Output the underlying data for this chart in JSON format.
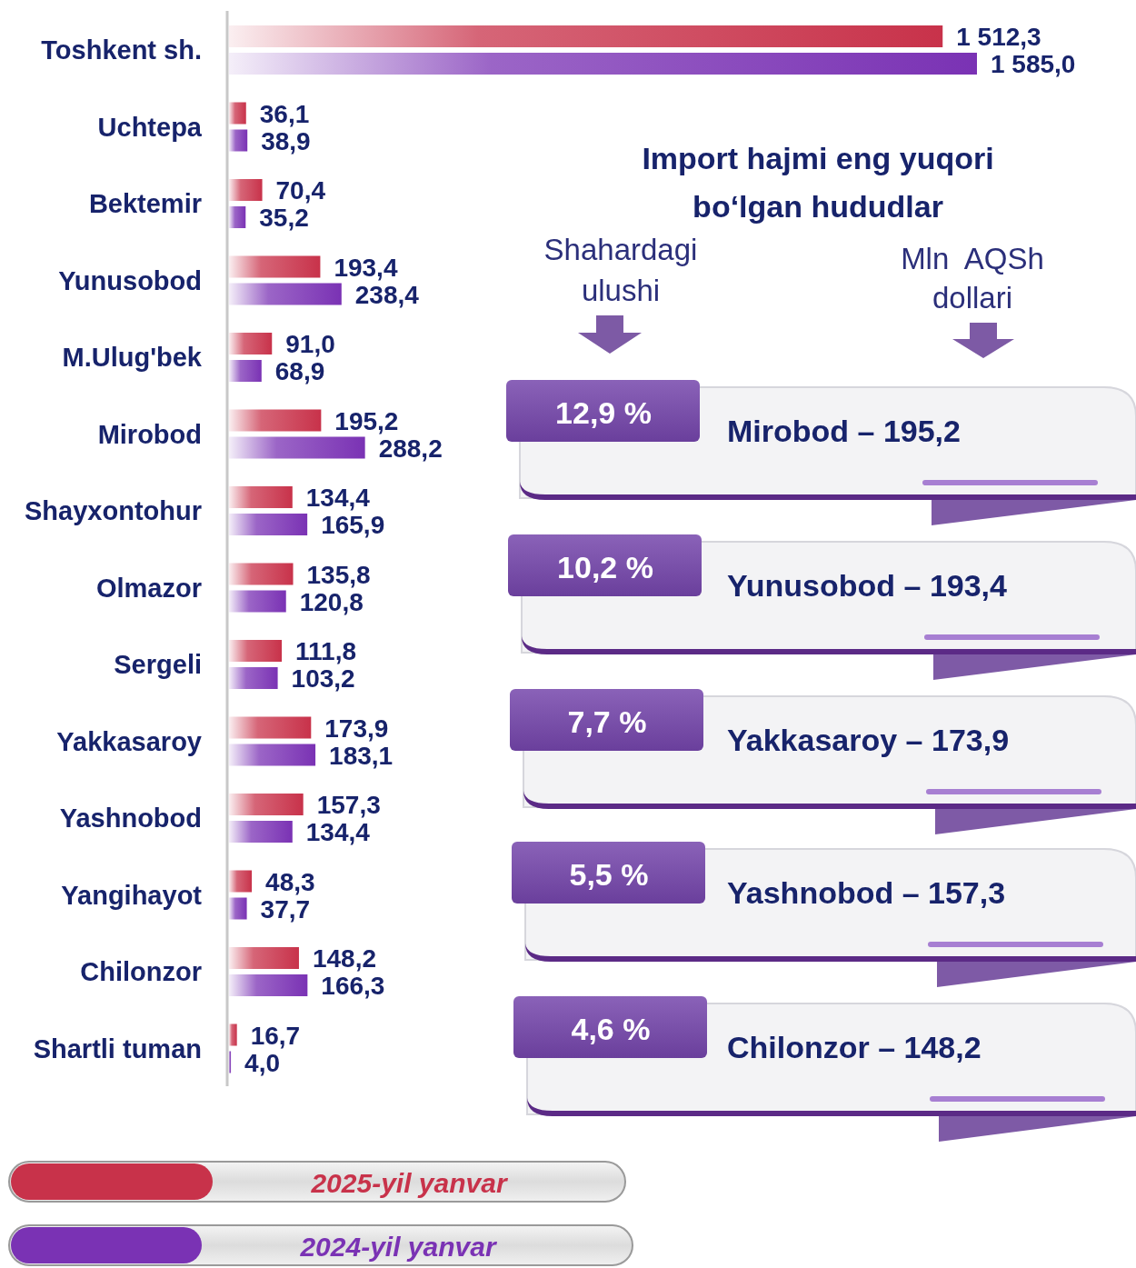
{
  "chart_data": [
    {
      "type": "bar",
      "orientation": "horizontal",
      "categories": [
        "Toshkent sh.",
        "Uchtepa",
        "Bektemir",
        "Yunusobod",
        "M.Ulug'bek",
        "Mirobod",
        "Shayxontohur",
        "Olmazor",
        "Sergeli",
        "Yakkasaroy",
        "Yashnobod",
        "Yangihayot",
        "Chilonzor",
        "Shartli tuman"
      ],
      "series": [
        {
          "name": "2025-yil yanvar",
          "color": "#c8324a",
          "values": [
            1512.3,
            36.1,
            70.4,
            193.4,
            91.0,
            195.2,
            134.4,
            135.8,
            111.8,
            173.9,
            157.3,
            48.3,
            148.2,
            16.7
          ],
          "value_labels": [
            "1 512,3",
            "36,1",
            "70,4",
            "193,4",
            "91,0",
            "195,2",
            "134,4",
            "135,8",
            "111,8",
            "173,9",
            "157,3",
            "48,3",
            "148,2",
            "16,7"
          ]
        },
        {
          "name": "2024-yil yanvar",
          "color": "#7a32b4",
          "values": [
            1585.0,
            38.9,
            35.2,
            238.4,
            68.9,
            288.2,
            165.9,
            120.8,
            103.2,
            183.1,
            134.4,
            37.7,
            166.3,
            4.0
          ],
          "value_labels": [
            "1 585,0",
            "38,9",
            "35,2",
            "238,4",
            "68,9",
            "288,2",
            "165,9",
            "120,8",
            "103,2",
            "183,1",
            "134,4",
            "37,7",
            "166,3",
            "4,0"
          ]
        }
      ],
      "legend": "bottom",
      "tick_labels": "y"
    },
    {
      "type": "other",
      "title": "Import hajmi eng yuqori bo‘lgan hududlar",
      "annotations": [
        "Shahardagi ulushi",
        "Mln  AQSh dollari",
        "12,9 %",
        "Mirobod – 195,2",
        "10,2 %",
        "Yunusobod – 193,4",
        "7,7 %",
        "Yakkasaroy – 173,9",
        "5,5 %",
        "Yashnobod – 157,3",
        "4,6 %",
        "Chilonzor – 148,2"
      ]
    }
  ]
}
